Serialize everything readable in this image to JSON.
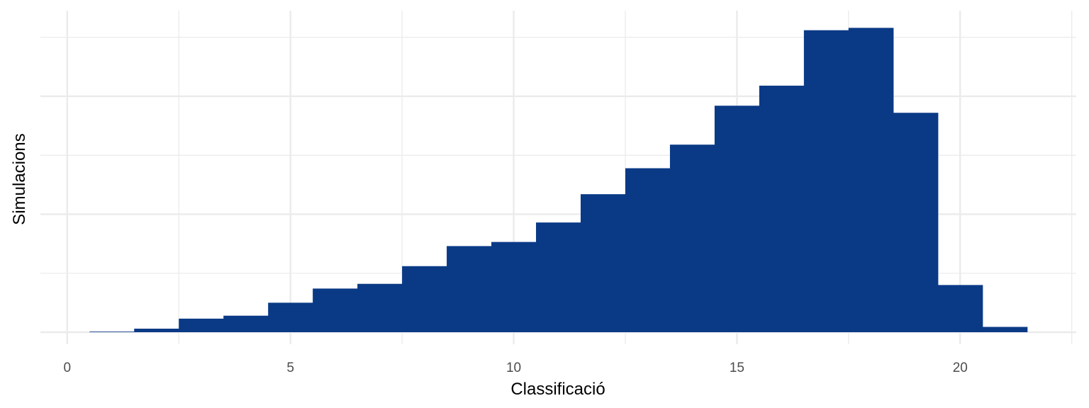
{
  "chart_data": {
    "type": "bar",
    "xlabel": "Classificació",
    "ylabel": "Simulacions",
    "xlim": [
      -0.6,
      22.6
    ],
    "ylim": [
      0,
      26
    ],
    "x_ticks": [
      0,
      5,
      10,
      15,
      20
    ],
    "bin_width": 1,
    "categories": [
      1,
      2,
      3,
      4,
      5,
      6,
      7,
      8,
      9,
      10,
      11,
      12,
      13,
      14,
      15,
      16,
      17,
      18,
      19,
      20,
      21
    ],
    "values": [
      0.05,
      0.3,
      1.15,
      1.4,
      2.5,
      3.7,
      4.1,
      5.6,
      7.3,
      7.65,
      9.3,
      11.7,
      13.9,
      15.9,
      19.2,
      20.9,
      25.6,
      25.8,
      18.6,
      4.0,
      0.45
    ],
    "y_tick_labels_shown": false,
    "grid": true,
    "legend": "none"
  },
  "colors": {
    "bar": "#0a3a86",
    "grid": "#ebebeb",
    "background": "#ffffff"
  }
}
